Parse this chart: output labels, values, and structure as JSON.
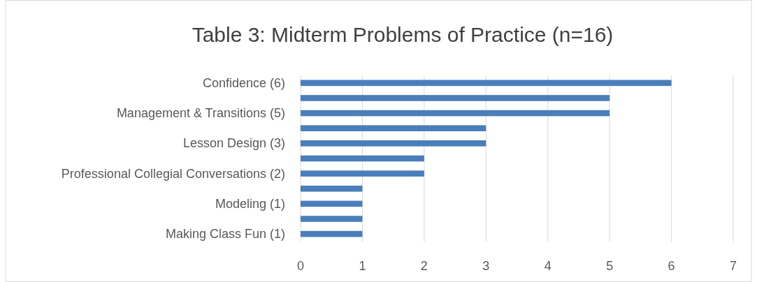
{
  "chart_data": {
    "type": "bar",
    "orientation": "horizontal",
    "title": "Table 3: Midterm Problems of Practice (n=16)",
    "categories": [
      "Confidence (6)",
      null,
      "Management & Transitions (5)",
      null,
      "Lesson Design (3)",
      null,
      "Professional Collegial Conversations (2)",
      null,
      "Modeling (1)",
      null,
      "Making Class Fun (1)"
    ],
    "values": [
      6,
      5,
      5,
      3,
      3,
      2,
      2,
      1,
      1,
      1,
      1
    ],
    "color": "#4a7ebb",
    "xlim": [
      0,
      7
    ],
    "xticks": [
      0,
      1,
      2,
      3,
      4,
      5,
      6,
      7
    ],
    "grid": "x"
  }
}
